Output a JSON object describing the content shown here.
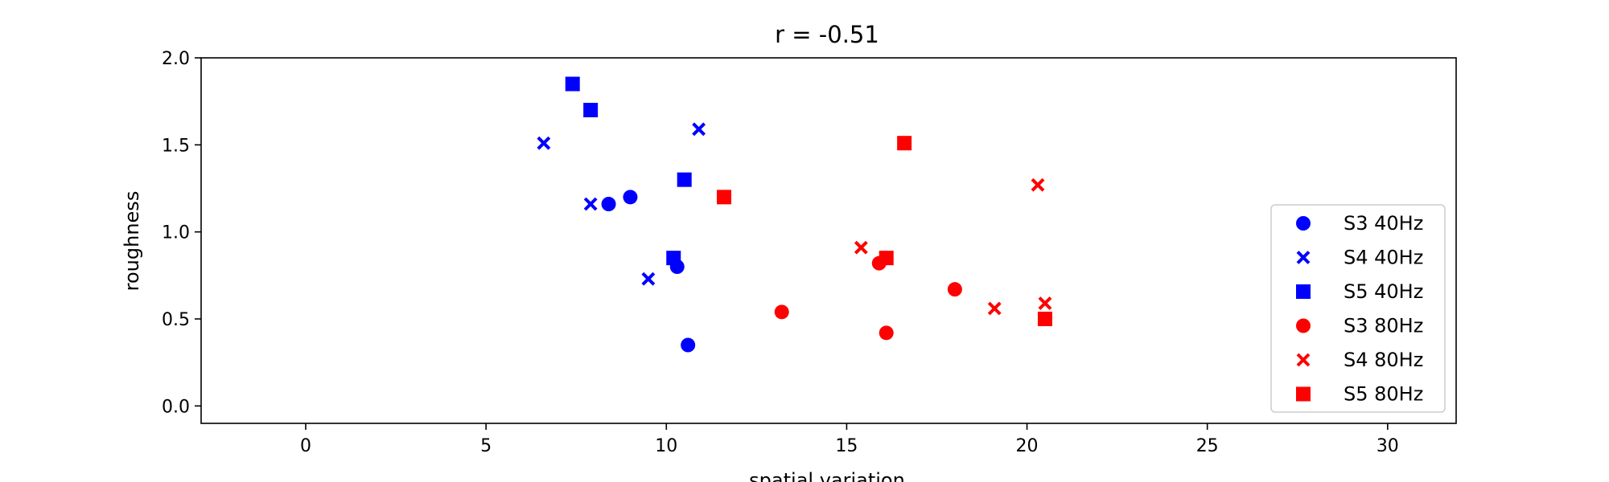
{
  "chart_data": {
    "type": "scatter",
    "title": "r = -0.51",
    "xlabel": "spatial variation",
    "ylabel": "roughness",
    "xlim": [
      -2.9,
      31.9
    ],
    "ylim": [
      -0.1,
      2.0
    ],
    "xticks": [
      0,
      5,
      10,
      15,
      20,
      25,
      30
    ],
    "xtick_labels": [
      "0",
      "5",
      "10",
      "15",
      "20",
      "25",
      "30"
    ],
    "yticks": [
      0.0,
      0.5,
      1.0,
      1.5,
      2.0
    ],
    "ytick_labels": [
      "0.0",
      "0.5",
      "1.0",
      "1.5",
      "2.0"
    ],
    "grid": false,
    "legend_position": "lower right",
    "series": [
      {
        "name": "S3 40Hz",
        "marker": "circle",
        "color": "#0000ff",
        "points": [
          [
            8.4,
            1.16
          ],
          [
            9.0,
            1.2
          ],
          [
            10.3,
            0.8
          ],
          [
            10.6,
            0.35
          ]
        ]
      },
      {
        "name": "S4 40Hz",
        "marker": "x",
        "color": "#0000ff",
        "points": [
          [
            6.6,
            1.51
          ],
          [
            7.9,
            1.16
          ],
          [
            9.5,
            0.73
          ],
          [
            10.9,
            1.59
          ]
        ]
      },
      {
        "name": "S5 40Hz",
        "marker": "square",
        "color": "#0000ff",
        "points": [
          [
            7.4,
            1.85
          ],
          [
            7.9,
            1.7
          ],
          [
            10.2,
            0.85
          ],
          [
            10.5,
            1.3
          ]
        ]
      },
      {
        "name": "S3 80Hz",
        "marker": "circle",
        "color": "#ff0000",
        "points": [
          [
            13.2,
            0.54
          ],
          [
            15.9,
            0.82
          ],
          [
            16.1,
            0.42
          ],
          [
            18.0,
            0.67
          ]
        ]
      },
      {
        "name": "S4 80Hz",
        "marker": "x",
        "color": "#ff0000",
        "points": [
          [
            15.4,
            0.91
          ],
          [
            19.1,
            0.56
          ],
          [
            20.3,
            1.27
          ],
          [
            20.5,
            0.59
          ]
        ]
      },
      {
        "name": "S5 80Hz",
        "marker": "square",
        "color": "#ff0000",
        "points": [
          [
            11.6,
            1.2
          ],
          [
            16.1,
            0.85
          ],
          [
            16.6,
            1.51
          ],
          [
            20.5,
            0.5
          ]
        ]
      }
    ]
  }
}
